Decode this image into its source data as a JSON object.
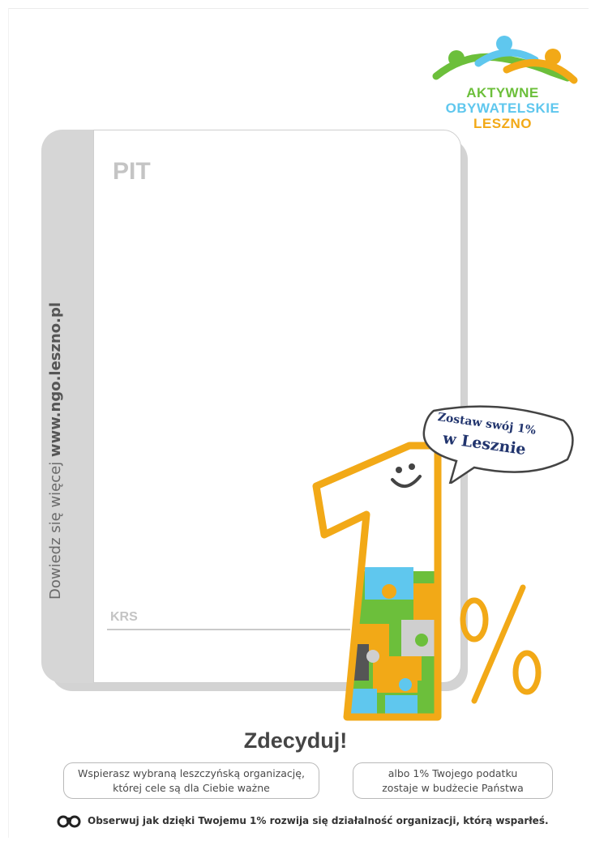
{
  "logo": {
    "line1": "AKTYWNE",
    "line2": "OBYWATELSKIE",
    "line3": "LESZNO",
    "colors": {
      "green": "#6cbf3b",
      "blue": "#5fc7ee",
      "orange": "#f2a917"
    }
  },
  "form": {
    "pit_label": "PIT",
    "krs_label": "KRS"
  },
  "sidebar": {
    "prefix": "Dowiedz się więcej ",
    "url": "www.ngo.leszno.pl"
  },
  "bubble": {
    "line1": "Zostaw swój 1%",
    "line2": "w Lesznie"
  },
  "graphic": {
    "percent_symbol": "%",
    "accent": "#f2a917"
  },
  "headline": "Zdecyduj!",
  "choices": {
    "left_line1": "Wspierasz wybraną leszczyńską organizację,",
    "left_line2": "której cele są dla Ciebie ważne",
    "right_line1": "albo 1% Twojego podatku",
    "right_line2": "zostaje w budżecie Państwa"
  },
  "footer": {
    "icon": "binoculars-icon",
    "text": "Obserwuj jak dzięki Twojemu 1% rozwija się działalność organizacji, którą wsparłeś."
  }
}
